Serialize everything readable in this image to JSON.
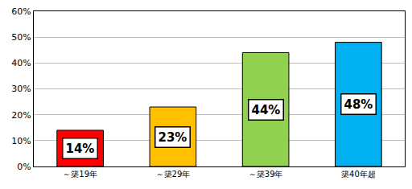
{
  "chart_data": {
    "type": "bar",
    "categories": [
      "～築19年",
      "～築29年",
      "～築39年",
      "築40年超"
    ],
    "values": [
      14,
      23,
      44,
      48
    ],
    "value_labels": [
      "14%",
      "23%",
      "44%",
      "48%"
    ],
    "colors": [
      "#ff0000",
      "#ffc000",
      "#92d050",
      "#00b0f0"
    ],
    "ylim": [
      0,
      60
    ],
    "yticks": [
      {
        "value": 0,
        "label": "0%"
      },
      {
        "value": 10,
        "label": "10%"
      },
      {
        "value": 20,
        "label": "20%"
      },
      {
        "value": 30,
        "label": "30%"
      },
      {
        "value": 40,
        "label": "40%"
      },
      {
        "value": 50,
        "label": "50%"
      },
      {
        "value": 60,
        "label": "60%"
      }
    ],
    "grid": true,
    "data_labels": true
  }
}
